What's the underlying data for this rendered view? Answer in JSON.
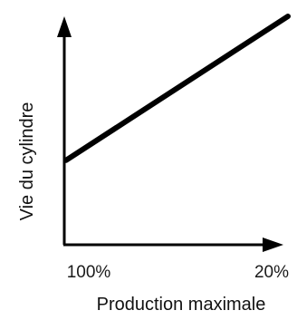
{
  "chart_data": {
    "type": "line",
    "title": "",
    "xlabel": "Production maximale",
    "ylabel": "Vie du cylindre",
    "x_tick_labels": [
      "100%",
      "20%"
    ],
    "x": [
      100,
      20
    ],
    "xlim": [
      100,
      20
    ],
    "ylim": [
      0,
      100
    ],
    "y_axis_tick_labels_visible": false,
    "grid": false,
    "legend": "none",
    "series": [
      {
        "values": [
          37,
          100
        ],
        "color": "#000000"
      }
    ]
  }
}
